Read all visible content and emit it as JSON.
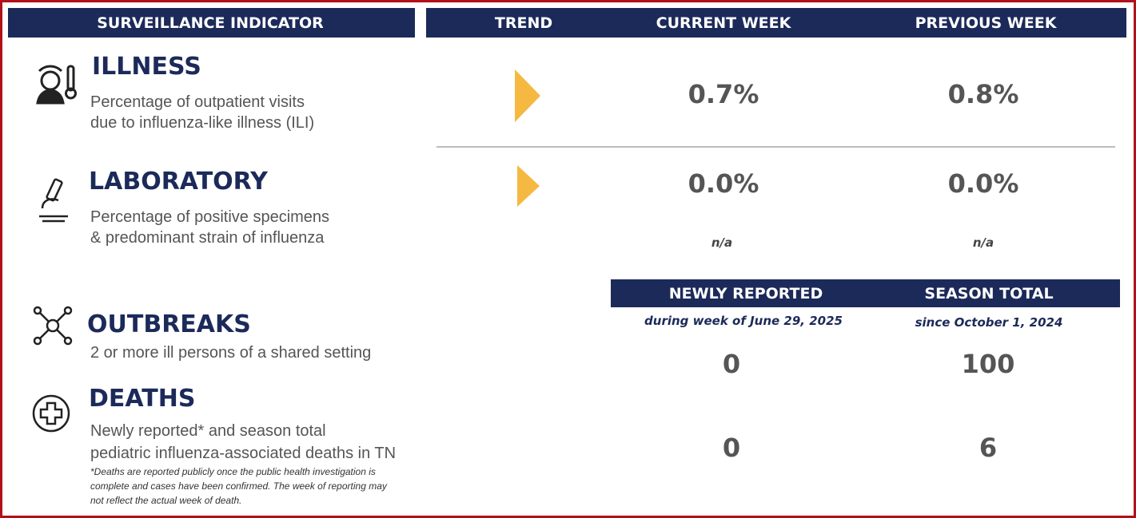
{
  "header": {
    "indicator": "SURVEILLANCE INDICATOR",
    "trend": "TREND",
    "current": "CURRENT WEEK",
    "previous": "PREVIOUS WEEK"
  },
  "illness": {
    "title": "ILLNESS",
    "description": [
      "Percentage of outpatient visits",
      "due to influenza-like illness (ILI)"
    ],
    "current": "0.7%",
    "previous": "0.8%"
  },
  "laboratory": {
    "title": "LABORATORY",
    "description": [
      "Percentage of positive specimens",
      "& predominant strain of influenza"
    ],
    "current": "0.0%",
    "previous": "0.0%",
    "current_strain": "n/a",
    "previous_strain": "n/a"
  },
  "header2": {
    "newly": "NEWLY REPORTED",
    "newly_sub": "during week of June 29, 2025",
    "season": "SEASON TOTAL",
    "season_sub": "since October 1, 2024"
  },
  "outbreaks": {
    "title": "OUTBREAKS",
    "description": [
      "2 or more ill persons of a shared setting"
    ],
    "newly": "0",
    "season": "100"
  },
  "deaths": {
    "title": "DEATHS",
    "description": [
      "Newly reported* and season total",
      "pediatric influenza-associated deaths in TN"
    ],
    "footnote": [
      "*Deaths are reported publicly once the public health investigation is",
      "complete and cases have been confirmed. The week of reporting may",
      "not reflect the actual week of death."
    ],
    "newly": "0",
    "season": "6"
  }
}
